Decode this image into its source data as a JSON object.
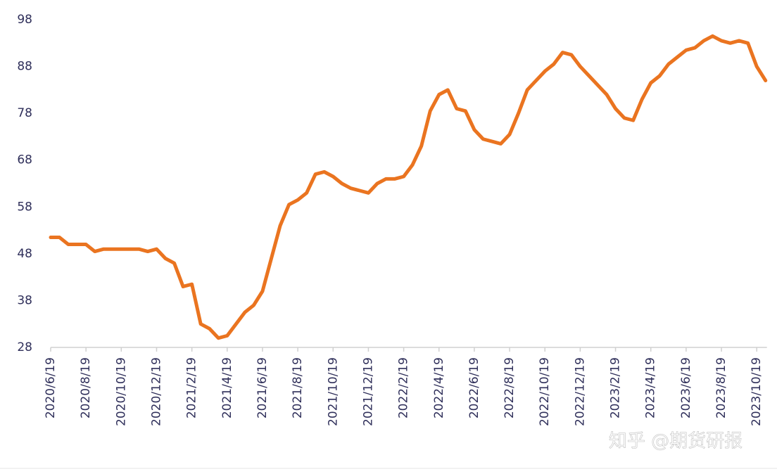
{
  "chart_data": {
    "type": "line",
    "categories": [
      "2020/6/19",
      null,
      null,
      null,
      "2020/8/19",
      null,
      null,
      null,
      "2020/10/19",
      null,
      null,
      null,
      "2020/12/19",
      null,
      null,
      null,
      "2021/2/19",
      null,
      null,
      null,
      "2021/4/19",
      null,
      null,
      null,
      "2021/6/19",
      null,
      null,
      null,
      "2021/8/19",
      null,
      null,
      null,
      "2021/10/19",
      null,
      null,
      null,
      "2021/12/19",
      null,
      null,
      null,
      "2022/2/19",
      null,
      null,
      null,
      "2022/4/19",
      null,
      null,
      null,
      "2022/6/19",
      null,
      null,
      null,
      "2022/8/19",
      null,
      null,
      null,
      "2022/10/19",
      null,
      null,
      null,
      "2022/12/19",
      null,
      null,
      null,
      "2023/2/19",
      null,
      null,
      null,
      "2023/4/19",
      null,
      null,
      null,
      "2023/6/19",
      null,
      null,
      null,
      "2023/8/19",
      null,
      null,
      null,
      "2023/10/19",
      null
    ],
    "series": [
      {
        "name": null,
        "color": "#ea7420",
        "values": [
          51.5,
          51.5,
          50,
          50,
          50,
          48.5,
          49,
          49,
          49,
          49,
          49,
          48.5,
          49,
          47,
          46,
          41,
          41.5,
          33,
          32,
          30,
          30.5,
          33,
          35.5,
          37,
          40,
          47,
          54,
          58.5,
          59.5,
          61,
          65,
          65.5,
          64.5,
          63,
          62,
          61.5,
          61,
          63,
          64,
          64,
          64.5,
          67,
          71,
          78.5,
          82,
          83,
          79,
          78.5,
          74.5,
          72.5,
          72,
          71.5,
          73.5,
          78,
          83,
          85,
          87,
          88.5,
          91,
          90.5,
          88,
          86,
          84,
          82,
          79,
          77,
          76.5,
          81,
          84.5,
          86,
          88.5,
          90,
          91.5,
          92,
          93.5,
          94.5,
          93.5,
          93,
          93.5,
          93,
          88,
          85
        ]
      }
    ],
    "ylim": [
      28,
      98
    ],
    "yticks": [
      28,
      38,
      48,
      58,
      68,
      78,
      88,
      98
    ],
    "annotation": "知乎 @期货研报"
  }
}
